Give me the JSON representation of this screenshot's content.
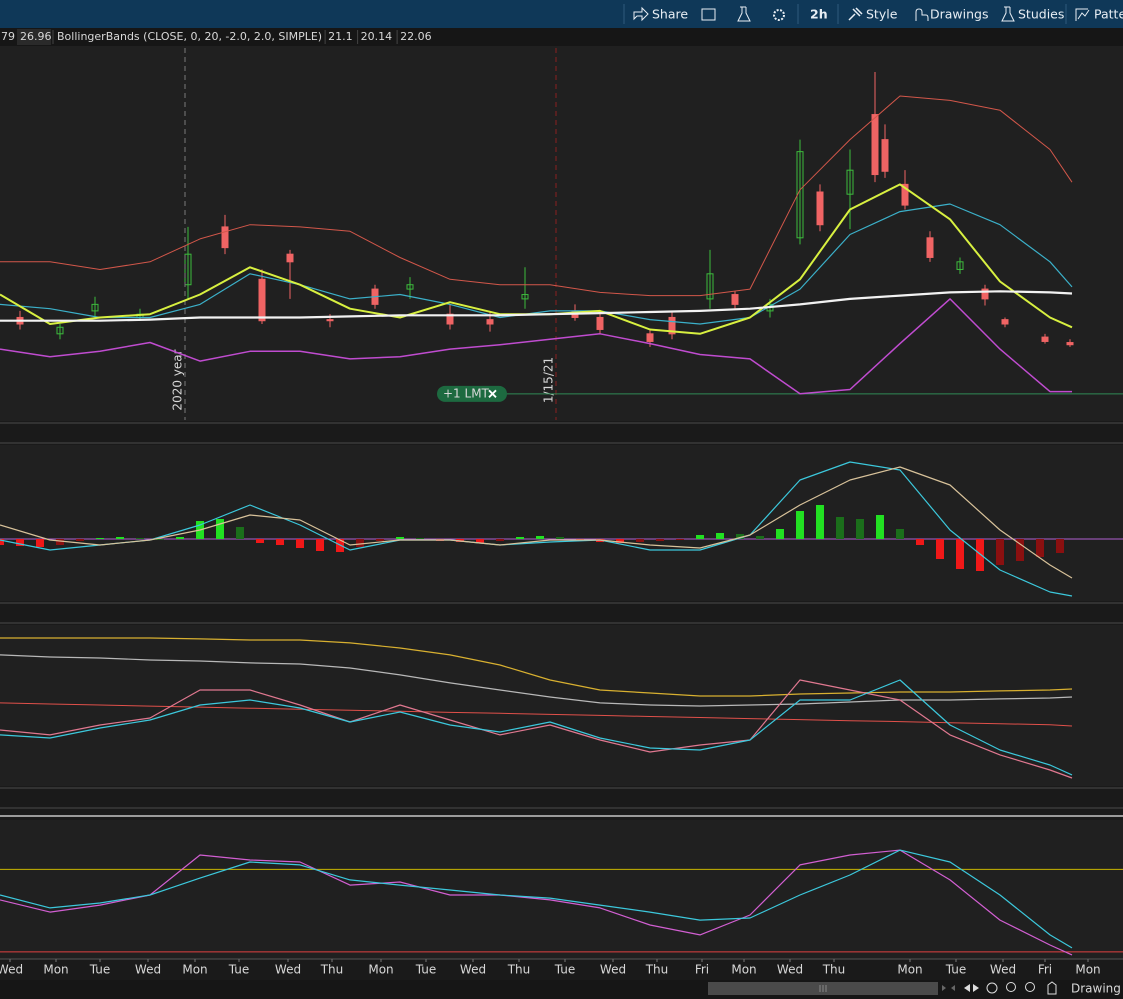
{
  "toolbar": {
    "buttons": [
      "Share",
      "2h",
      "Style",
      "Drawings",
      "Studies",
      "Patte"
    ]
  },
  "status": "Drawing s",
  "chart_data": [
    {
      "type": "candlestick",
      "quote_values": [
        79,
        26.96
      ],
      "study_label": "BollingerBands (CLOSE, 0, 20, -2.0, 2.0, SIMPLE)",
      "study_values": [
        21.1,
        20.14,
        22.06
      ],
      "study_colors": [
        "#4fc3f7",
        "#d25fd2",
        "#e0705e"
      ],
      "ylim": [
        19.88,
        23.29
      ],
      "up_color": "#3dbb3d",
      "down_color": "#f06464",
      "candles": [
        {
          "x": 2,
          "open": 20.82,
          "high": 20.88,
          "low": 20.71,
          "close": 20.76
        },
        {
          "x": 6,
          "open": 20.67,
          "high": 20.76,
          "low": 20.62,
          "close": 20.73
        },
        {
          "x": 9.5,
          "open": 20.88,
          "high": 21.01,
          "low": 20.82,
          "close": 20.94
        },
        {
          "x": 14,
          "open": 20.82,
          "high": 20.9,
          "low": 20.79,
          "close": 20.85
        },
        {
          "x": 18.8,
          "open": 21.12,
          "high": 21.65,
          "low": 20.99,
          "close": 21.4
        },
        {
          "x": 22.5,
          "open": 21.65,
          "high": 21.76,
          "low": 21.4,
          "close": 21.46
        },
        {
          "x": 26.2,
          "open": 21.17,
          "high": 21.26,
          "low": 20.76,
          "close": 20.79
        },
        {
          "x": 29,
          "open": 21.4,
          "high": 21.44,
          "low": 20.99,
          "close": 21.33
        },
        {
          "x": 33,
          "open": 20.8,
          "high": 20.85,
          "low": 20.73,
          "close": 20.79
        },
        {
          "x": 37.5,
          "open": 21.08,
          "high": 21.12,
          "low": 20.9,
          "close": 20.94
        },
        {
          "x": 41,
          "open": 21.08,
          "high": 21.19,
          "low": 20.99,
          "close": 21.12
        },
        {
          "x": 45,
          "open": 20.85,
          "high": 20.94,
          "low": 20.71,
          "close": 20.76
        },
        {
          "x": 49,
          "open": 20.8,
          "high": 20.88,
          "low": 20.69,
          "close": 20.76
        },
        {
          "x": 52.5,
          "open": 20.99,
          "high": 21.28,
          "low": 20.9,
          "close": 21.03
        },
        {
          "x": 57.5,
          "open": 20.88,
          "high": 20.94,
          "low": 20.79,
          "close": 20.82
        },
        {
          "x": 60,
          "open": 20.82,
          "high": 20.88,
          "low": 20.67,
          "close": 20.71
        },
        {
          "x": 65,
          "open": 20.67,
          "high": 20.71,
          "low": 20.55,
          "close": 20.6
        },
        {
          "x": 67.2,
          "open": 20.82,
          "high": 20.88,
          "low": 20.62,
          "close": 20.67
        },
        {
          "x": 71,
          "open": 20.99,
          "high": 21.44,
          "low": 20.9,
          "close": 21.22
        },
        {
          "x": 73.5,
          "open": 21.03,
          "high": 21.06,
          "low": 20.9,
          "close": 20.94
        },
        {
          "x": 77,
          "open": 20.88,
          "high": 20.99,
          "low": 20.82,
          "close": 20.94
        },
        {
          "x": 80,
          "open": 21.55,
          "high": 22.45,
          "low": 21.49,
          "close": 22.34
        },
        {
          "x": 82,
          "open": 21.97,
          "high": 22.04,
          "low": 21.61,
          "close": 21.67
        },
        {
          "x": 85,
          "open": 21.95,
          "high": 22.36,
          "low": 21.63,
          "close": 22.17
        },
        {
          "x": 87.5,
          "open": 22.68,
          "high": 23.07,
          "low": 22.06,
          "close": 22.13
        },
        {
          "x": 88.5,
          "open": 22.45,
          "high": 22.59,
          "low": 22.1,
          "close": 22.16
        },
        {
          "x": 90.5,
          "open": 22.04,
          "high": 22.17,
          "low": 21.81,
          "close": 21.85
        },
        {
          "x": 93,
          "open": 21.55,
          "high": 21.61,
          "low": 21.33,
          "close": 21.37
        },
        {
          "x": 96,
          "open": 21.26,
          "high": 21.37,
          "low": 21.22,
          "close": 21.33
        },
        {
          "x": 98.5,
          "open": 21.08,
          "high": 21.12,
          "low": 20.93,
          "close": 20.99
        },
        {
          "x": 100.5,
          "open": 20.8,
          "high": 20.82,
          "low": 20.73,
          "close": 20.76
        },
        {
          "x": 104.5,
          "open": 20.64,
          "high": 20.67,
          "low": 20.58,
          "close": 20.6
        },
        {
          "x": 107,
          "open": 20.59,
          "high": 20.62,
          "low": 20.55,
          "close": 20.57
        }
      ],
      "x": [
        0,
        5,
        10,
        15,
        20,
        25,
        30,
        35,
        40,
        45,
        50,
        55,
        60,
        65,
        70,
        75,
        80,
        85,
        90,
        95,
        100,
        105,
        107.2
      ],
      "series": [
        {
          "color": "#d2574a",
          "width": 1,
          "values": [
            21.33,
            21.33,
            21.26,
            21.33,
            21.54,
            21.67,
            21.65,
            21.61,
            21.37,
            21.17,
            21.12,
            21.12,
            21.05,
            21.02,
            21.02,
            21.08,
            21.99,
            22.45,
            22.85,
            22.81,
            22.72,
            22.36,
            22.06
          ]
        },
        {
          "color": "#c04cd0",
          "width": 1.5,
          "values": [
            20.53,
            20.46,
            20.51,
            20.59,
            20.42,
            20.51,
            20.51,
            20.44,
            20.46,
            20.53,
            20.57,
            20.62,
            20.67,
            20.58,
            20.48,
            20.44,
            20.12,
            20.16,
            20.58,
            20.99,
            20.53,
            20.14,
            20.14
          ]
        },
        {
          "color": "#3bb0c9",
          "width": 1.2,
          "values": [
            20.94,
            20.9,
            20.82,
            20.82,
            20.94,
            21.22,
            21.12,
            20.99,
            21.03,
            20.94,
            20.82,
            20.88,
            20.88,
            20.8,
            20.76,
            20.82,
            21.08,
            21.58,
            21.79,
            21.86,
            21.67,
            21.33,
            21.1
          ]
        },
        {
          "color": "#d8f040",
          "width": 2,
          "values": [
            21.03,
            20.76,
            20.82,
            20.85,
            21.03,
            21.28,
            21.12,
            20.9,
            20.82,
            20.96,
            20.85,
            20.85,
            20.88,
            20.71,
            20.67,
            20.82,
            21.17,
            21.81,
            22.04,
            21.72,
            21.15,
            20.82,
            20.73
          ]
        },
        {
          "color": "#f2f2f2",
          "width": 2.2,
          "values": [
            20.79,
            20.79,
            20.79,
            20.8,
            20.82,
            20.82,
            20.82,
            20.83,
            20.84,
            20.84,
            20.84,
            20.85,
            20.86,
            20.87,
            20.88,
            20.9,
            20.94,
            20.99,
            21.02,
            21.05,
            21.06,
            21.05,
            21.04
          ]
        }
      ],
      "annotations": [
        {
          "label": "2020 year",
          "x": 18.5,
          "color": "#7a7a7a"
        },
        {
          "label": "1/15/21",
          "x": 55.6,
          "color": "#8a2020"
        }
      ],
      "order": {
        "label": "+1 LMT",
        "value": 20.12,
        "color": "#2f8a55"
      }
    },
    {
      "type": "histogram",
      "ylim": [
        -0.305,
        0.47
      ],
      "levels": [
        {
          "value": 0,
          "color": "#b060d0"
        }
      ],
      "histogram": {
        "x": [
          0,
          2,
          4,
          6,
          8,
          10,
          12,
          14,
          16,
          18,
          20,
          22,
          24,
          26,
          28,
          30,
          32,
          34,
          36,
          38,
          40,
          42,
          44,
          46,
          48,
          50,
          52,
          54,
          56,
          58,
          60,
          62,
          64,
          66,
          68,
          70,
          72,
          74,
          76,
          78,
          80,
          82,
          84,
          86,
          88,
          90,
          92,
          94,
          96,
          98,
          100,
          102,
          104,
          106
        ],
        "values": [
          -0.03,
          -0.035,
          -0.04,
          -0.03,
          -0.01,
          0.005,
          0.01,
          0.005,
          0,
          0.01,
          0.09,
          0.1,
          0.06,
          -0.02,
          -0.03,
          -0.045,
          -0.06,
          -0.065,
          -0.04,
          -0.01,
          0.01,
          0.005,
          -0.01,
          -0.015,
          -0.02,
          -0.01,
          0.01,
          0.015,
          0.01,
          -0.005,
          -0.015,
          -0.02,
          -0.015,
          -0.01,
          -0.005,
          0.02,
          0.03,
          0.025,
          0.015,
          0.05,
          0.14,
          0.17,
          0.11,
          0.1,
          0.12,
          0.05,
          -0.03,
          -0.1,
          -0.15,
          -0.16,
          -0.13,
          -0.11,
          -0.09,
          -0.07
        ],
        "colors": [
          "#22e022",
          "#1b6e1b",
          "#f01818",
          "#8a1010"
        ]
      },
      "x": [
        0,
        5,
        10,
        15,
        20,
        25,
        30,
        35,
        40,
        45,
        50,
        55,
        60,
        65,
        70,
        75,
        80,
        85,
        90,
        95,
        100,
        105,
        107.2
      ],
      "series": [
        {
          "color": "#3cc8dc",
          "width": 1.2,
          "values": [
            -0.005,
            -0.055,
            -0.03,
            -0.005,
            0.07,
            0.17,
            0.07,
            -0.055,
            -0.005,
            -0.005,
            -0.03,
            -0.015,
            -0.005,
            -0.055,
            -0.055,
            0.02,
            0.295,
            0.385,
            0.345,
            0.045,
            -0.155,
            -0.265,
            -0.285
          ]
        },
        {
          "color": "#d8c29a",
          "width": 1.2,
          "values": [
            0.07,
            -0.005,
            -0.03,
            -0.005,
            0.045,
            0.12,
            0.095,
            -0.03,
            -0.005,
            -0.005,
            -0.03,
            -0.005,
            -0.005,
            -0.03,
            -0.045,
            0.02,
            0.17,
            0.295,
            0.36,
            0.27,
            0.045,
            -0.13,
            -0.195
          ]
        }
      ]
    },
    {
      "type": "line",
      "ylim": [
        0,
        100
      ],
      "x": [
        0,
        5,
        10,
        15,
        20,
        25,
        30,
        35,
        40,
        45,
        50,
        55,
        60,
        65,
        70,
        75,
        80,
        85,
        90,
        95,
        100,
        105,
        107.2
      ],
      "series": [
        {
          "color": "#d8b030",
          "width": 1.2,
          "values": [
            91.9,
            91.9,
            91.9,
            91.9,
            91.3,
            90.6,
            90.6,
            88.8,
            85.6,
            81.3,
            75,
            65.6,
            59.4,
            57.5,
            55.6,
            55.6,
            56.9,
            57.5,
            58.1,
            58.1,
            58.8,
            59.4,
            60
          ]
        },
        {
          "color": "#b8b8b8",
          "width": 1.2,
          "values": [
            81.3,
            80,
            79.4,
            78.1,
            77.5,
            76.3,
            75.6,
            73.1,
            68.8,
            63.8,
            59.4,
            55,
            51.3,
            50,
            49.4,
            50,
            50.6,
            51.9,
            53.1,
            53.1,
            53.8,
            54.4,
            55
          ]
        },
        {
          "color": "#e0504a",
          "width": 1,
          "values": [
            51.3,
            50.6,
            50,
            49.3,
            48.7,
            48,
            47.4,
            46.7,
            46.1,
            45.4,
            44.8,
            44.1,
            43.5,
            42.8,
            42.2,
            41.5,
            40.9,
            40.2,
            39.6,
            38.9,
            38.3,
            37.6,
            36.9
          ]
        },
        {
          "color": "#e07890",
          "width": 1.2,
          "values": [
            34.4,
            31.3,
            37.5,
            41.9,
            59.4,
            59.4,
            50,
            39.4,
            50,
            40.6,
            31.3,
            37.5,
            28.1,
            20.6,
            25,
            28.1,
            65.6,
            59.4,
            53.1,
            31.3,
            18.8,
            9.4,
            4.4
          ]
        },
        {
          "color": "#3cc8dc",
          "width": 1.2,
          "values": [
            31.3,
            29.4,
            35.6,
            40.6,
            50,
            53.1,
            48.1,
            39.4,
            45.6,
            37.5,
            33.1,
            39.4,
            29.4,
            23.1,
            21.9,
            28.1,
            53.1,
            53.1,
            65.6,
            37.5,
            21.9,
            12.5,
            6.3
          ]
        }
      ]
    },
    {
      "type": "line",
      "ylim": [
        27,
        94
      ],
      "levels": [
        {
          "value": 70,
          "color": "#c8b400"
        },
        {
          "value": 30,
          "color": "#e04040"
        }
      ],
      "x": [
        0,
        5,
        10,
        15,
        20,
        25,
        30,
        35,
        40,
        45,
        50,
        55,
        60,
        65,
        70,
        75,
        80,
        85,
        90,
        95,
        100,
        105,
        107.2
      ],
      "series": [
        {
          "color": "#d25fd2",
          "width": 1.2,
          "values": [
            55.2,
            49.3,
            52.7,
            57.6,
            77,
            74.6,
            73.6,
            62.4,
            63.9,
            57.6,
            57.6,
            55.2,
            51.3,
            43,
            38.2,
            47.9,
            72.2,
            77,
            79.4,
            64.9,
            45.4,
            33.3,
            28.5
          ]
        },
        {
          "color": "#3cc8dc",
          "width": 1.2,
          "values": [
            57.6,
            51.3,
            53.7,
            57.6,
            65.8,
            73.6,
            72.2,
            64.9,
            62.4,
            60,
            57.6,
            56.1,
            52.7,
            49.3,
            45.4,
            46.4,
            57.6,
            67.3,
            79.4,
            73.6,
            57.6,
            38.2,
            31.9
          ]
        }
      ],
      "xlim": [
        0,
        112.3
      ],
      "xticks": [
        {
          "value": 1,
          "label": "Wed"
        },
        {
          "value": 5.6,
          "label": "Mon"
        },
        {
          "value": 10,
          "label": "Tue"
        },
        {
          "value": 14.8,
          "label": "Wed"
        },
        {
          "value": 19.5,
          "label": "Mon"
        },
        {
          "value": 23.9,
          "label": "Tue"
        },
        {
          "value": 28.8,
          "label": "Wed"
        },
        {
          "value": 33.2,
          "label": "Thu"
        },
        {
          "value": 38.1,
          "label": "Mon"
        },
        {
          "value": 42.6,
          "label": "Tue"
        },
        {
          "value": 47.3,
          "label": "Wed"
        },
        {
          "value": 51.9,
          "label": "Thu"
        },
        {
          "value": 56.5,
          "label": "Tue"
        },
        {
          "value": 61.3,
          "label": "Wed"
        },
        {
          "value": 65.7,
          "label": "Thu"
        },
        {
          "value": 70.2,
          "label": "Fri"
        },
        {
          "value": 74.4,
          "label": "Mon"
        },
        {
          "value": 79,
          "label": "Wed"
        },
        {
          "value": 83.4,
          "label": "Thu"
        },
        {
          "value": 91,
          "label": "Mon"
        },
        {
          "value": 95.6,
          "label": "Tue"
        },
        {
          "value": 100.3,
          "label": "Wed"
        },
        {
          "value": 104.5,
          "label": "Fri"
        },
        {
          "value": 108.8,
          "label": "Mon"
        }
      ]
    }
  ]
}
